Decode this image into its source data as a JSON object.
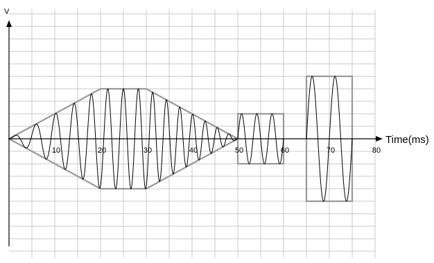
{
  "chart_data": {
    "type": "line",
    "xlabel": "Time(ms)",
    "ylabel": "V",
    "x_ticks": [
      "10",
      "20",
      "30",
      "40",
      "50",
      "60",
      "70",
      "80"
    ],
    "xlim": [
      0,
      80
    ],
    "ylim": [
      -5,
      5
    ],
    "grid": true,
    "series": [
      {
        "kind": "waveform",
        "segments": [
          {
            "shape": "diamond-envelope",
            "x_start": 0,
            "x_ramp_up_end": 20,
            "x_flat_end": 30,
            "x_end": 50,
            "peak_amplitude": 2.0,
            "frequency_khz_start": 0.2,
            "frequency_khz_end": 0.4
          },
          {
            "shape": "rectangle-envelope",
            "x_start": 50,
            "x_end": 60,
            "amplitude": 1.0,
            "frequency_khz": 0.3
          },
          {
            "shape": "rectangle-envelope",
            "x_start": 65,
            "x_end": 75,
            "amplitude": 2.5,
            "frequency_khz": 0.2
          }
        ]
      }
    ],
    "colors": {
      "grid": "#c8c8c8",
      "envelope": "#999999",
      "wave": "#000000",
      "axis": "#000000"
    }
  }
}
